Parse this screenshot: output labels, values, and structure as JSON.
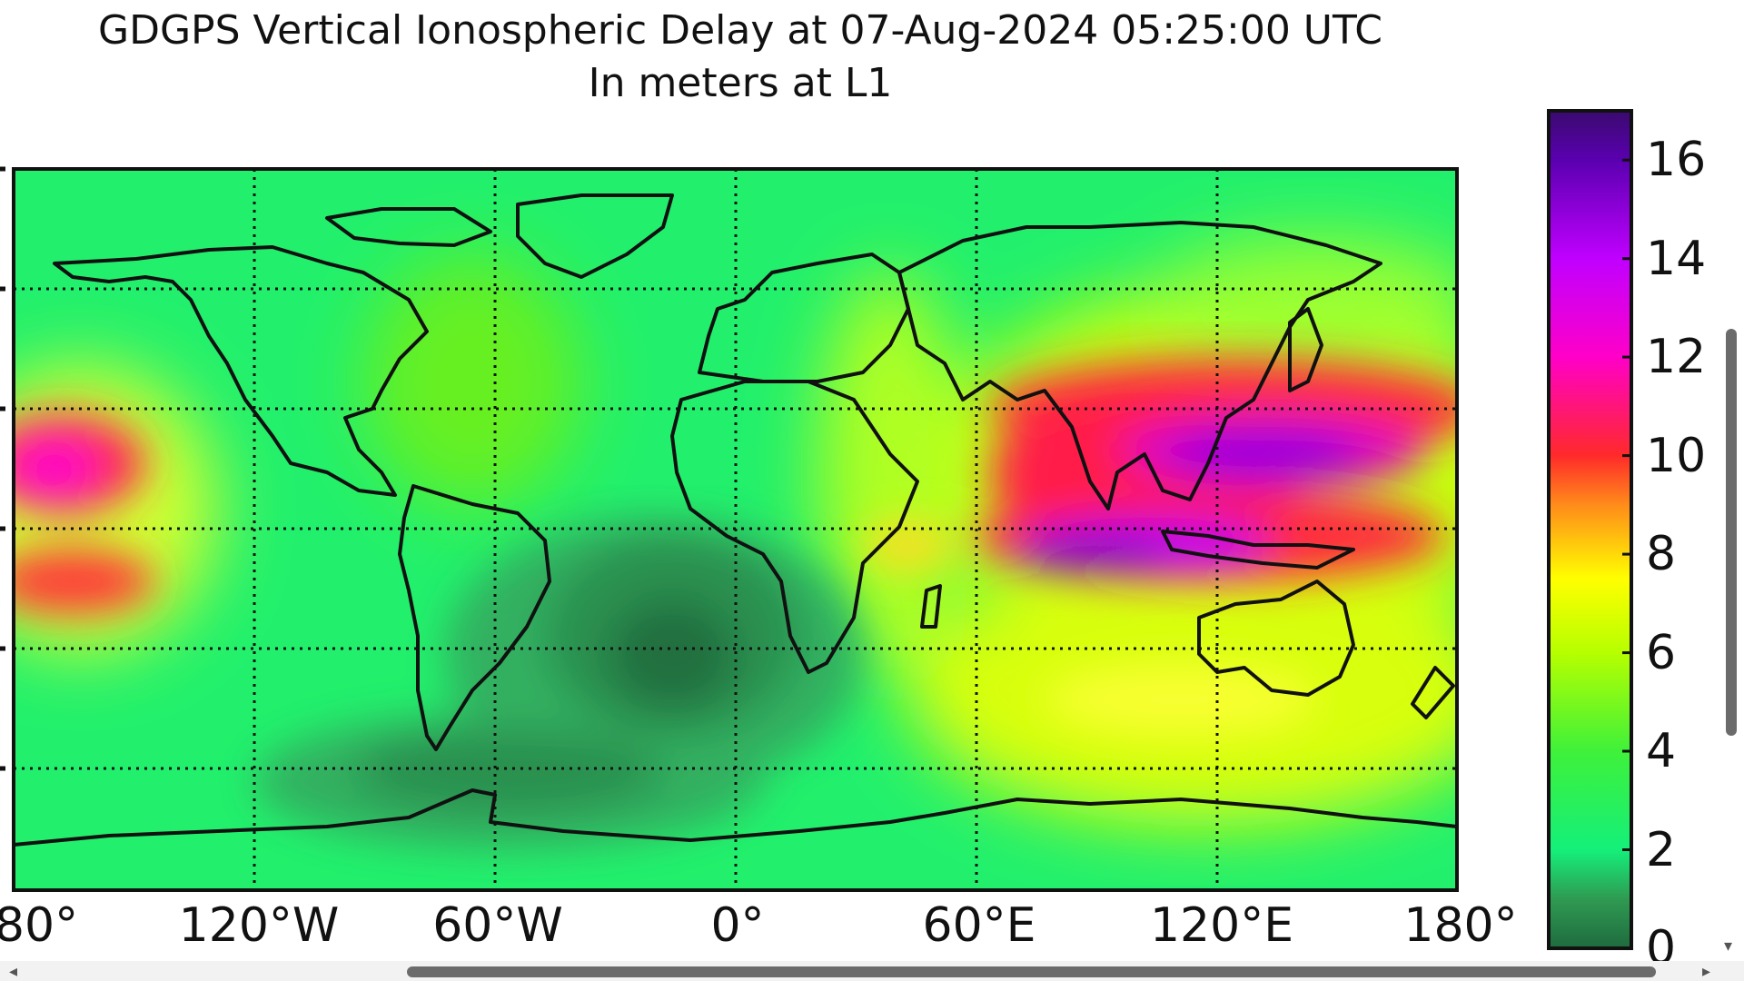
{
  "title": "GDGPS Vertical Ionospheric Delay at 07-Aug-2024 05:25:00 UTC",
  "subtitle": "In meters at L1",
  "x_ticks": [
    "80°",
    "120°W",
    "60°W",
    "0°",
    "60°E",
    "120°E",
    "180°"
  ],
  "colorbar": {
    "ticks": [
      "16",
      "14",
      "12",
      "10",
      "8",
      "6",
      "4",
      "2",
      "0"
    ],
    "range": [
      0,
      17
    ],
    "stops": [
      {
        "value": 0,
        "color": "#1f6b3e"
      },
      {
        "value": 1,
        "color": "#2f9a52"
      },
      {
        "value": 2,
        "color": "#14f07a"
      },
      {
        "value": 4,
        "color": "#3ff13a"
      },
      {
        "value": 6,
        "color": "#b6ff00"
      },
      {
        "value": 7.5,
        "color": "#ffff00"
      },
      {
        "value": 9,
        "color": "#ff8c1a"
      },
      {
        "value": 10,
        "color": "#ff2a2a"
      },
      {
        "value": 12,
        "color": "#ff00c8"
      },
      {
        "value": 14,
        "color": "#c000ff"
      },
      {
        "value": 16,
        "color": "#5a00b0"
      },
      {
        "value": 17,
        "color": "#3a0a6e"
      }
    ]
  },
  "map": {
    "background_color": "#22f06c",
    "grid": "dotted",
    "regions": [
      {
        "name": "asia-pacific-crest-north",
        "value": 11,
        "color": "#ff2d4a"
      },
      {
        "name": "asia-pacific-crest-south",
        "value": 12.5,
        "color": "#e600c8"
      },
      {
        "name": "indian-ocean-band",
        "value": 10,
        "color": "#ff3a3a"
      },
      {
        "name": "australia-yellow",
        "value": 7,
        "color": "#e8ff20"
      },
      {
        "name": "south-atlantic-low",
        "value": 0.8,
        "color": "#2c8c50"
      },
      {
        "name": "pacific-west-edge",
        "value": 10,
        "color": "#ff3355"
      }
    ]
  }
}
